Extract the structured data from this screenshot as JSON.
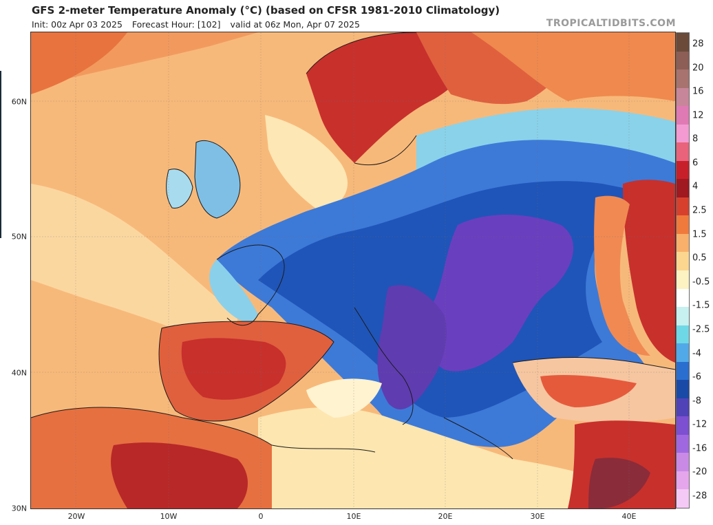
{
  "header": {
    "title": "GFS 2-meter Temperature Anomaly (°C) (based on CFSR 1981-2010 Climatology)",
    "init": "Init: 00z Apr 03 2025",
    "forecast_hour": "Forecast Hour: [102]",
    "valid": "valid at 06z Mon, Apr 07 2025",
    "brand": "TROPICALTIDBITS.COM"
  },
  "map": {
    "lat_labels": [
      "60N",
      "50N",
      "40N",
      "30N"
    ],
    "lon_labels": [
      "20W",
      "10W",
      "0",
      "10E",
      "20E",
      "30E",
      "40E"
    ]
  },
  "colorbar": {
    "labels": [
      "28",
      "20",
      "16",
      "12",
      "8",
      "6",
      "4",
      "2.5",
      "1.5",
      "0.5",
      "-0.5",
      "-1.5",
      "-2.5",
      "-4",
      "-6",
      "-8",
      "-12",
      "-16",
      "-20",
      "-28"
    ],
    "colors": [
      "#6b4a3a",
      "#8c5e55",
      "#a8736f",
      "#c8869a",
      "#e07ab4",
      "#f39ad2",
      "#e9637a",
      "#c8202a",
      "#a01820",
      "#d8402e",
      "#f07a3c",
      "#f8b06a",
      "#fcd68e",
      "#fdf2c2",
      "#ffffff",
      "#c7f0f0",
      "#6fd8e6",
      "#52a9e8",
      "#2a6fd0",
      "#1a4aa8",
      "#5043b8",
      "#7d4fd1",
      "#a068e0",
      "#c98ae6",
      "#e6a6ec",
      "#f5c9f5"
    ]
  }
}
